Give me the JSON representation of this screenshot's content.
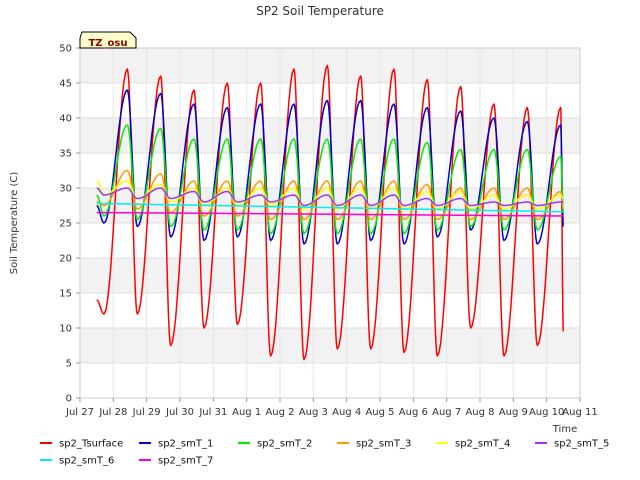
{
  "chart_data": {
    "type": "line",
    "title": "SP2 Soil Temperature",
    "xlabel": "Time",
    "ylabel": "Soil Temperature (C)",
    "badge": "TZ_osu",
    "ylim": [
      0,
      50
    ],
    "yticks": [
      0,
      5,
      10,
      15,
      20,
      25,
      30,
      35,
      40,
      45,
      50
    ],
    "xlim": [
      0,
      15
    ],
    "xticks": [
      {
        "x": 0,
        "label": "Jul 27"
      },
      {
        "x": 1,
        "label": "Jul 28"
      },
      {
        "x": 2,
        "label": "Jul 29"
      },
      {
        "x": 3,
        "label": "Jul 30"
      },
      {
        "x": 4,
        "label": "Jul 31"
      },
      {
        "x": 5,
        "label": "Aug 1"
      },
      {
        "x": 6,
        "label": "Aug 2"
      },
      {
        "x": 7,
        "label": "Aug 3"
      },
      {
        "x": 8,
        "label": "Aug 4"
      },
      {
        "x": 9,
        "label": "Aug 5"
      },
      {
        "x": 10,
        "label": "Aug 6"
      },
      {
        "x": 11,
        "label": "Aug 7"
      },
      {
        "x": 12,
        "label": "Aug 8"
      },
      {
        "x": 13,
        "label": "Aug 9"
      },
      {
        "x": 14,
        "label": "Aug 10"
      },
      {
        "x": 15,
        "label": "Aug 11"
      }
    ],
    "x_start": 0.5,
    "x_end": 14.5,
    "peak_day_offset": 0.42,
    "series": [
      {
        "name": "sp2_Tsurface",
        "color": "#ff0000",
        "max": [
          47,
          46,
          44,
          45,
          45,
          47,
          47.5,
          46,
          47,
          45.5,
          44.5,
          42,
          41.5,
          41.5
        ],
        "min": [
          12,
          12,
          7.5,
          10,
          10.5,
          6,
          5.5,
          7,
          7,
          6.5,
          6,
          10,
          6,
          7.5
        ],
        "start_value": 14,
        "end_value": 9.5
      },
      {
        "name": "sp2_smT_1",
        "color": "#0000cc",
        "max": [
          44,
          43.5,
          42,
          41.5,
          42,
          42,
          42.5,
          42.5,
          42,
          41.5,
          41,
          40,
          39.5,
          39
        ],
        "min": [
          25,
          24.5,
          23,
          22.5,
          23,
          22.5,
          22,
          22,
          22.5,
          22,
          23,
          24,
          22.5,
          22
        ],
        "start_value": 27.5,
        "end_value": 24.5
      },
      {
        "name": "sp2_smT_2",
        "color": "#00ee00",
        "max": [
          39,
          38.5,
          37,
          37,
          37,
          37,
          37,
          37,
          37,
          36.5,
          35.5,
          35.5,
          35.5,
          34.5
        ],
        "min": [
          26,
          25.5,
          24.5,
          24,
          24,
          23.5,
          23.5,
          23.5,
          23.5,
          23.5,
          24,
          24.5,
          24,
          24
        ],
        "start_value": 29,
        "end_value": 26.5
      },
      {
        "name": "sp2_smT_3",
        "color": "#ff9900",
        "max": [
          32.5,
          32,
          31,
          31,
          31,
          31,
          31,
          31,
          31,
          30.5,
          30,
          30,
          30,
          29.5
        ],
        "min": [
          27.5,
          27,
          26.5,
          26,
          26,
          25.5,
          25.5,
          25.5,
          25.5,
          25.5,
          25.5,
          25.5,
          25.5,
          25.5
        ],
        "start_value": 28,
        "end_value": 27
      },
      {
        "name": "sp2_smT_4",
        "color": "#ffff00",
        "max": [
          31,
          30.5,
          30,
          30,
          30,
          30,
          30,
          30,
          30,
          29.5,
          29.5,
          29,
          29,
          29
        ],
        "min": [
          29,
          28.5,
          28,
          27.5,
          27.5,
          27.5,
          27,
          27,
          27,
          27,
          27,
          27,
          27,
          27
        ],
        "start_value": 31,
        "end_value": 28.5
      },
      {
        "name": "sp2_smT_5",
        "color": "#9933ff",
        "max": [
          30,
          30,
          29.5,
          29.5,
          29,
          29,
          29,
          29,
          29,
          28.5,
          28.5,
          28,
          28,
          28
        ],
        "min": [
          29,
          28.5,
          28.5,
          28,
          28,
          28,
          27.5,
          27.5,
          27.5,
          27.5,
          27.5,
          27.5,
          27.5,
          27.5
        ],
        "start_value": 30,
        "end_value": 28
      },
      {
        "name": "sp2_smT_6",
        "color": "#00eeee",
        "start_value": 27.8,
        "end_value": 26.6
      },
      {
        "name": "sp2_smT_7",
        "color": "#ff00cc",
        "start_value": 26.5,
        "end_value": 26.0
      }
    ]
  }
}
